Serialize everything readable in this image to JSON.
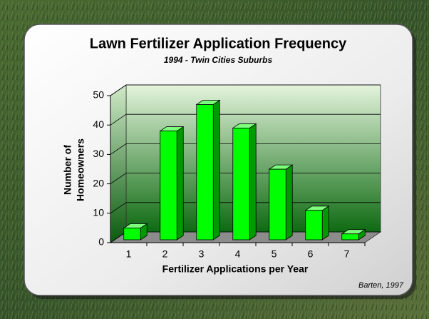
{
  "chart_data": {
    "type": "bar3d",
    "title": "Lawn Fertilizer Application Frequency",
    "subtitle": "1994 - Twin Cities Suburbs",
    "xlabel": "Fertilizer Applications per Year",
    "ylabel": [
      "Number of",
      "Homeowners"
    ],
    "source": "Barten, 1997",
    "categories": [
      "1",
      "2",
      "3",
      "4",
      "5",
      "6",
      "7"
    ],
    "values": [
      4,
      37,
      46,
      38,
      24,
      10,
      2
    ],
    "color": "#00ff00",
    "ylim": [
      0,
      50
    ],
    "yticks": [
      0,
      10,
      20,
      30,
      40,
      50
    ],
    "grid": true
  }
}
